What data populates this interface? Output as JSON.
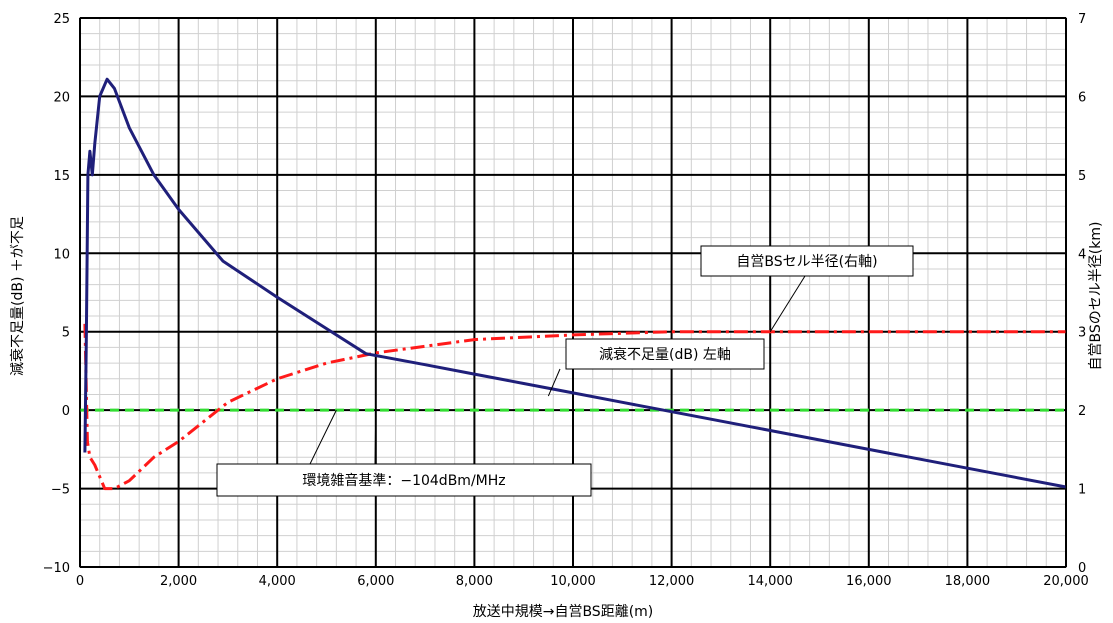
{
  "chart_data": {
    "type": "line",
    "xlabel": "放送中規模→自営BS距離(m)",
    "ylabel": "減衰不足量(dB) ＋が不足",
    "y2label": "自営BSのセル半径(km)",
    "xlim": [
      0,
      20000
    ],
    "ylim": [
      -10,
      25
    ],
    "y2lim": [
      0,
      7
    ],
    "x_ticks": [
      0,
      2000,
      4000,
      6000,
      8000,
      10000,
      12000,
      14000,
      16000,
      18000,
      20000
    ],
    "x_tick_labels": [
      "0",
      "2,000",
      "4,000",
      "6,000",
      "8,000",
      "10,000",
      "12,000",
      "14,000",
      "16,000",
      "18,000",
      "20,000"
    ],
    "y_ticks": [
      -10,
      -5,
      0,
      5,
      10,
      15,
      20,
      25
    ],
    "y_tick_labels": [
      "−10",
      "−5",
      "0",
      "5",
      "10",
      "15",
      "20",
      "25"
    ],
    "y2_ticks": [
      0,
      1,
      2,
      3,
      4,
      5,
      6,
      7
    ],
    "y2_tick_labels": [
      "0",
      "1",
      "2",
      "3",
      "4",
      "5",
      "6",
      "7"
    ],
    "grid": true,
    "series": [
      {
        "name": "減衰不足量(dB) 左軸",
        "axis": "left",
        "color": "#1f1f7a",
        "style": "solid",
        "x": [
          100,
          130,
          160,
          200,
          250,
          300,
          400,
          550,
          700,
          1000,
          1500,
          2000,
          2900,
          4000,
          5000,
          5800,
          7000,
          8000,
          9000,
          10000,
          11000,
          12000,
          14000,
          16000,
          18000,
          20000
        ],
        "y": [
          -2.7,
          5,
          15,
          16.5,
          15,
          17,
          20,
          21.1,
          20.5,
          18,
          15,
          12.8,
          9.5,
          7.2,
          5.2,
          3.6,
          2.9,
          2.3,
          1.7,
          1.1,
          0.5,
          -0.1,
          -1.3,
          -2.5,
          -3.7,
          -4.9
        ]
      },
      {
        "name": "自営BSセル半径(右軸)",
        "axis": "right",
        "color": "#ff1a1a",
        "style": "dashdot",
        "x": [
          100,
          150,
          200,
          300,
          500,
          700,
          1000,
          1500,
          2000,
          3000,
          4000,
          5000,
          6000,
          8000,
          10000,
          12000,
          14000,
          16000,
          18000,
          20000
        ],
        "y": [
          3.1,
          1.6,
          1.4,
          1.3,
          1.0,
          1.0,
          1.1,
          1.4,
          1.6,
          2.1,
          2.4,
          2.6,
          2.73,
          2.9,
          2.96,
          3.0,
          3.0,
          3.0,
          3.0,
          3.0
        ]
      },
      {
        "name": "環境雑音基準：−104dBm/MHz",
        "axis": "left",
        "color": "#33dd33",
        "style": "dashed",
        "x": [
          0,
          20000
        ],
        "y": [
          0,
          0
        ]
      }
    ],
    "annotations": [
      {
        "text": "環境雑音基準：−104dBm/MHz"
      },
      {
        "text": "減衰不足量(dB) 左軸"
      },
      {
        "text": "自営BSセル半径(右軸)"
      }
    ]
  }
}
